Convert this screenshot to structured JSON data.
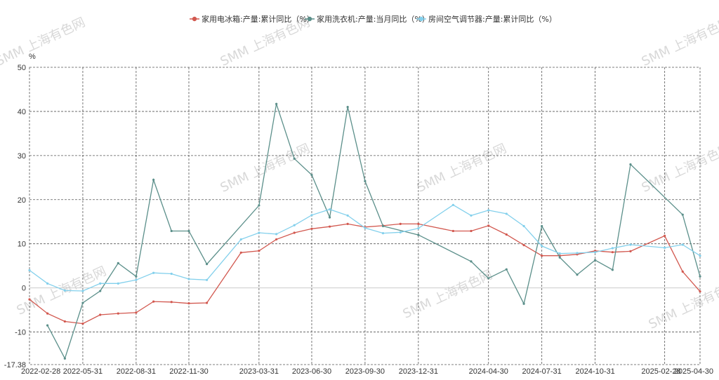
{
  "watermark": "SMM 上海有色网",
  "chart_data": {
    "type": "line",
    "unit_label": "%",
    "ylim": [
      -17.38,
      50
    ],
    "y_ticks": [
      50,
      40,
      30,
      20,
      10,
      0,
      -10,
      -17.38
    ],
    "y_tick_labels": [
      "50",
      "40",
      "30",
      "20",
      "10",
      "0",
      "-10",
      "-17.38"
    ],
    "x_range": [
      "2022-02-28",
      "2025-04-30"
    ],
    "x_ticks": [
      "2022-02-28",
      "2022-05-31",
      "2022-08-31",
      "2022-11-30",
      "2023-03-31",
      "2023-06-30",
      "2023-09-30",
      "2023-12-31",
      "2024-04-30",
      "2024-07-31",
      "2024-10-31",
      "2025-02-28",
      "2025-04-30"
    ],
    "grid": true,
    "legend_position": "top",
    "series": [
      {
        "name": "家用电冰箱:产量:累计同比（%）",
        "color": "#d2584f",
        "x": [
          "2022-02-28",
          "2022-03-31",
          "2022-04-30",
          "2022-05-31",
          "2022-06-30",
          "2022-07-31",
          "2022-08-31",
          "2022-09-30",
          "2022-10-31",
          "2022-11-30",
          "2022-12-31",
          "2023-02-28",
          "2023-03-31",
          "2023-04-30",
          "2023-05-31",
          "2023-06-30",
          "2023-07-31",
          "2023-08-31",
          "2023-09-30",
          "2023-10-31",
          "2023-11-30",
          "2023-12-31",
          "2024-02-29",
          "2024-03-31",
          "2024-04-30",
          "2024-05-31",
          "2024-06-30",
          "2024-07-31",
          "2024-08-31",
          "2024-09-30",
          "2024-10-31",
          "2024-11-30",
          "2024-12-31",
          "2025-02-28",
          "2025-03-31",
          "2025-04-30"
        ],
        "values": [
          -2.6,
          -5.8,
          -7.6,
          -8.1,
          -6.1,
          -5.8,
          -5.6,
          -3.1,
          -3.2,
          -3.5,
          -3.4,
          8.0,
          8.4,
          11.0,
          12.5,
          13.4,
          13.9,
          14.5,
          13.8,
          14.1,
          14.5,
          14.5,
          12.9,
          12.9,
          14.1,
          12.1,
          9.7,
          7.3,
          7.3,
          7.6,
          8.4,
          8.1,
          8.3,
          11.8,
          3.7,
          -0.8
        ]
      },
      {
        "name": "家用洗衣机:产量:当月同比（%）",
        "color": "#5b8f8a",
        "x": [
          "2022-03-31",
          "2022-04-30",
          "2022-05-31",
          "2022-06-30",
          "2022-07-31",
          "2022-08-31",
          "2022-09-30",
          "2022-10-31",
          "2022-11-30",
          "2022-12-31",
          "2023-03-31",
          "2023-04-30",
          "2023-05-31",
          "2023-06-30",
          "2023-07-31",
          "2023-08-31",
          "2023-09-30",
          "2023-10-31",
          "2023-12-31",
          "2024-03-31",
          "2024-04-30",
          "2024-05-31",
          "2024-06-30",
          "2024-07-31",
          "2024-08-31",
          "2024-09-30",
          "2024-10-31",
          "2024-11-30",
          "2024-12-31",
          "2025-03-31",
          "2025-04-30"
        ],
        "values": [
          -8.5,
          -16.0,
          -3.4,
          -0.7,
          5.6,
          2.6,
          24.5,
          12.9,
          12.9,
          5.4,
          18.7,
          41.7,
          29.3,
          25.6,
          16.0,
          41.0,
          24.2,
          14.0,
          12.0,
          6.0,
          2.2,
          4.2,
          -3.6,
          14.0,
          6.9,
          3.0,
          6.3,
          4.1,
          28.0,
          16.6,
          2.6
        ]
      },
      {
        "name": "房间空气调节器:产量:累计同比（%）",
        "color": "#83d0ec",
        "x": [
          "2022-02-28",
          "2022-03-31",
          "2022-04-30",
          "2022-05-31",
          "2022-06-30",
          "2022-07-31",
          "2022-08-31",
          "2022-09-30",
          "2022-10-31",
          "2022-11-30",
          "2022-12-31",
          "2023-02-28",
          "2023-03-31",
          "2023-04-30",
          "2023-05-31",
          "2023-06-30",
          "2023-07-31",
          "2023-08-31",
          "2023-09-30",
          "2023-10-31",
          "2023-11-30",
          "2023-12-31",
          "2024-02-29",
          "2024-03-31",
          "2024-04-30",
          "2024-05-31",
          "2024-06-30",
          "2024-07-31",
          "2024-08-31",
          "2024-09-30",
          "2024-10-31",
          "2024-11-30",
          "2024-12-31",
          "2025-02-28",
          "2025-03-31",
          "2025-04-30"
        ],
        "values": [
          4.0,
          1.0,
          -0.6,
          -0.7,
          1.0,
          1.0,
          1.8,
          3.4,
          3.2,
          2.0,
          1.8,
          11.0,
          12.5,
          12.2,
          14.2,
          16.5,
          17.8,
          16.4,
          13.6,
          12.4,
          12.6,
          13.5,
          18.8,
          16.4,
          17.6,
          16.8,
          14.0,
          9.5,
          7.8,
          7.9,
          8.1,
          9.0,
          9.8,
          9.1,
          9.8,
          7.3
        ]
      }
    ]
  }
}
